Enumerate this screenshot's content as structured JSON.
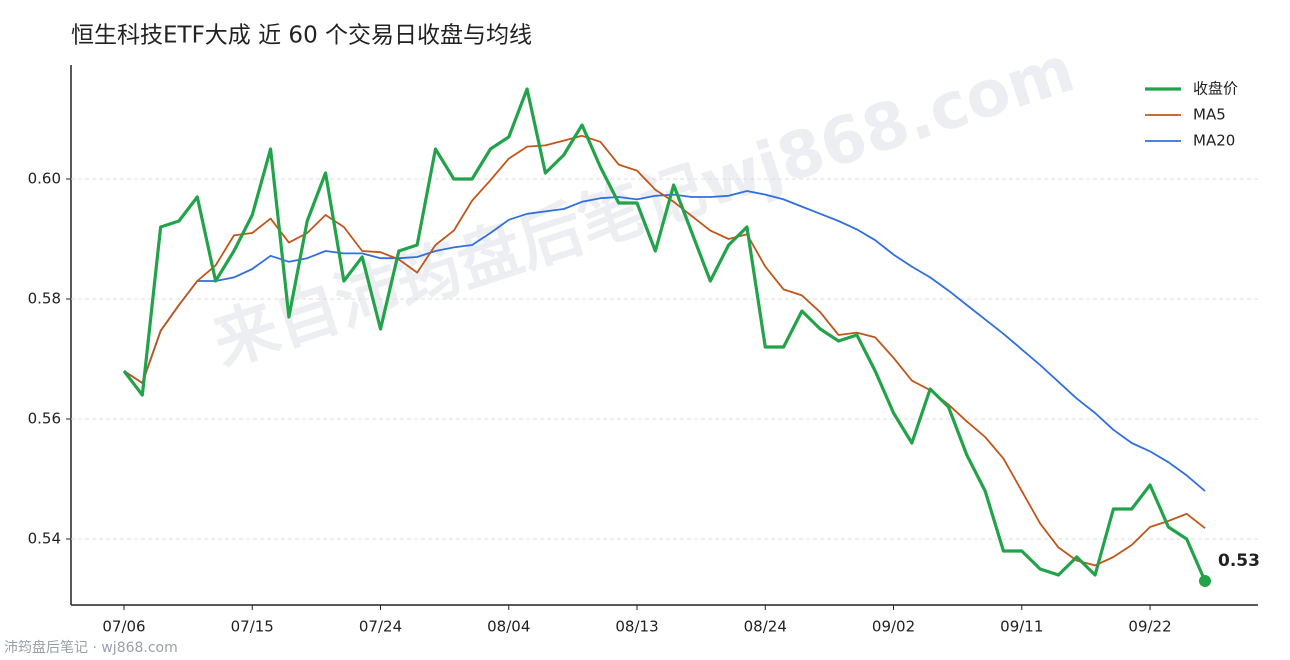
{
  "chart_data": {
    "type": "line",
    "title": "恒生科技ETF大成 近 60 个交易日收盘与均线",
    "watermark": "来自沛筠盘后笔记wj868.com",
    "footer": "沛筠盘后笔记 · wj868.com",
    "categories": [
      "07/06",
      null,
      null,
      null,
      null,
      null,
      null,
      "07/15",
      null,
      null,
      null,
      null,
      null,
      null,
      "07/24",
      null,
      null,
      null,
      null,
      null,
      null,
      "08/04",
      null,
      null,
      null,
      null,
      null,
      null,
      "08/13",
      null,
      null,
      null,
      null,
      null,
      null,
      "08/24",
      null,
      null,
      null,
      null,
      null,
      null,
      "09/02",
      null,
      null,
      null,
      null,
      null,
      null,
      "09/11",
      null,
      null,
      null,
      null,
      null,
      null,
      "09/22",
      null,
      null,
      null
    ],
    "series": [
      {
        "name": "收盘价",
        "color": "#22a34a",
        "values": [
          0.568,
          0.564,
          0.592,
          0.593,
          0.597,
          0.583,
          0.588,
          0.594,
          0.605,
          0.577,
          0.593,
          0.601,
          0.583,
          0.587,
          0.575,
          0.588,
          0.589,
          0.605,
          0.6,
          0.6,
          0.605,
          0.607,
          0.615,
          0.601,
          0.604,
          0.609,
          0.602,
          0.596,
          0.596,
          0.588,
          0.599,
          0.591,
          0.583,
          0.589,
          0.592,
          0.572,
          0.572,
          0.578,
          0.575,
          0.573,
          0.574,
          0.568,
          0.561,
          0.556,
          0.565,
          0.562,
          0.554,
          0.548,
          0.538,
          0.538,
          0.535,
          0.534,
          0.537,
          0.534,
          0.545,
          0.545,
          0.549,
          0.542,
          0.54,
          0.533
        ],
        "value_labels": [
          null,
          null,
          null,
          null,
          null,
          null,
          null,
          null,
          null,
          null,
          null,
          null,
          null,
          null,
          null,
          null,
          null,
          null,
          null,
          null,
          null,
          null,
          null,
          null,
          null,
          null,
          null,
          null,
          null,
          null,
          null,
          null,
          null,
          null,
          null,
          null,
          null,
          null,
          null,
          null,
          null,
          null,
          null,
          null,
          null,
          null,
          null,
          null,
          null,
          null,
          null,
          null,
          null,
          null,
          null,
          null,
          null,
          null,
          null,
          "0.53"
        ]
      },
      {
        "name": "MA5",
        "color": "#c0561a",
        "values": [
          0.568,
          0.566,
          0.5747,
          0.579,
          0.583,
          0.5856,
          0.5906,
          0.591,
          0.5934,
          0.5894,
          0.591,
          0.594,
          0.592,
          0.588,
          0.5878,
          0.5866,
          0.5844,
          0.589,
          0.5914,
          0.5964,
          0.5998,
          0.6034,
          0.6054,
          0.6056,
          0.6064,
          0.6072,
          0.6062,
          0.6024,
          0.6014,
          0.5982,
          0.5962,
          0.5938,
          0.5914,
          0.59,
          0.5908,
          0.5854,
          0.5816,
          0.5806,
          0.5778,
          0.574,
          0.5744,
          0.5736,
          0.5702,
          0.5664,
          0.5648,
          0.5624,
          0.5596,
          0.557,
          0.5534,
          0.548,
          0.5426,
          0.5386,
          0.5364,
          0.5356,
          0.537,
          0.539,
          0.542,
          0.543,
          0.5442,
          0.5418
        ]
      },
      {
        "name": "MA20",
        "color": "#2f6fe0",
        "values": [
          0.568,
          0.566,
          0.5747,
          0.579,
          0.583,
          0.583,
          0.5836,
          0.585,
          0.5872,
          0.5862,
          0.5868,
          0.588,
          0.5876,
          0.5876,
          0.5868,
          0.5868,
          0.587,
          0.588,
          0.5886,
          0.589,
          0.591,
          0.5932,
          0.5942,
          0.5946,
          0.595,
          0.5962,
          0.5968,
          0.597,
          0.5966,
          0.5972,
          0.5974,
          0.597,
          0.597,
          0.5972,
          0.598,
          0.5974,
          0.5966,
          0.5954,
          0.5942,
          0.593,
          0.5916,
          0.5898,
          0.5874,
          0.5854,
          0.5836,
          0.5814,
          0.579,
          0.5766,
          0.5742,
          0.5716,
          0.569,
          0.5662,
          0.5634,
          0.561,
          0.5582,
          0.556,
          0.5546,
          0.5528,
          0.5506,
          0.548
        ]
      }
    ],
    "ylim": [
      0.529,
      0.619
    ],
    "yticks": [
      0.54,
      0.56,
      0.58,
      {
        "value": 0.6,
        "label": "0.60"
      }
    ],
    "grid": true,
    "legend": "upper right"
  }
}
